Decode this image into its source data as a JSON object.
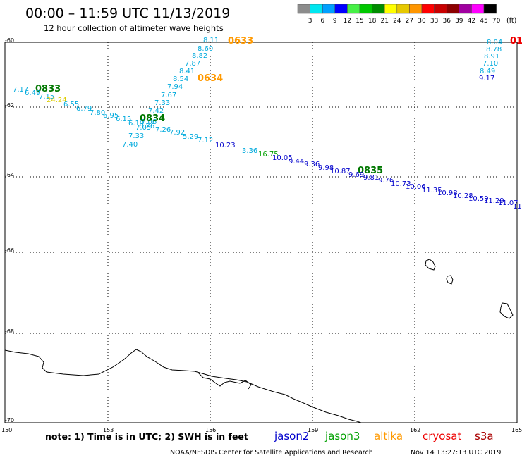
{
  "header": {
    "title": "00:00 – 11:59 UTC 11/13/2019",
    "subtitle": "12 hour collection of altimeter wave heights"
  },
  "legend": {
    "unit": "(ft)",
    "bins": [
      {
        "label": "3",
        "color": "#8c8c8c"
      },
      {
        "label": "6",
        "color": "#00e6f0"
      },
      {
        "label": "9",
        "color": "#00a0ff"
      },
      {
        "label": "12",
        "color": "#0000ff"
      },
      {
        "label": "15",
        "color": "#46f046"
      },
      {
        "label": "18",
        "color": "#00c800"
      },
      {
        "label": "21",
        "color": "#008c00"
      },
      {
        "label": "24",
        "color": "#ffff00"
      },
      {
        "label": "27",
        "color": "#e6c800"
      },
      {
        "label": "30",
        "color": "#ff9600"
      },
      {
        "label": "33",
        "color": "#ff0000"
      },
      {
        "label": "36",
        "color": "#c80000"
      },
      {
        "label": "39",
        "color": "#8c0000"
      },
      {
        "label": "42",
        "color": "#a000a0"
      },
      {
        "label": "45",
        "color": "#ff00ff"
      },
      {
        "label": "70",
        "color": "#000000"
      }
    ]
  },
  "axes": {
    "lat_labels": [
      "-60",
      "-62",
      "-64",
      "-66",
      "-68",
      "-70"
    ],
    "lon_labels": [
      "150",
      "153",
      "156",
      "159",
      "162",
      "165"
    ]
  },
  "colors": {
    "cyan": "#00aadd",
    "blue": "#0000cc",
    "green": "#00a000",
    "dark_green": "#007700",
    "yellow": "#ddcc00",
    "orange": "#ff9900",
    "red": "#ee0000"
  },
  "tracks": {
    "track_0633": {
      "time_label": "0633",
      "time_color": "#ff9900",
      "values": [
        "8.11",
        "8.60",
        "8.82",
        "7.87",
        "8.41",
        "8.54",
        "7.94",
        "7.67",
        "7.33",
        "7.42",
        "7.06",
        "7.05",
        "7.33",
        "7.40"
      ]
    },
    "track_0634": {
      "time_label": "0634",
      "time_color": "#ff9900"
    },
    "track_0833": {
      "time_label": "0833",
      "time_color": "#007700",
      "values": [
        "7.17",
        "6.49",
        "7.15",
        "24.24",
        "6.55",
        "6.79",
        "7.80",
        "6.95",
        "6.15",
        "6.19",
        "6.26"
      ]
    },
    "track_0834": {
      "time_label": "0834",
      "time_color": "#007700",
      "values": [
        "7.26",
        "7.92",
        "5.29",
        "7.12",
        "10.23",
        "3.36",
        "16.75",
        "10.05",
        "9.44",
        "9.36",
        "9.98",
        "10.87"
      ]
    },
    "track_0835": {
      "time_label": "0835",
      "time_color": "#007700",
      "values": [
        "9.69",
        "9.81",
        "9.76",
        "10.73",
        "10.06",
        "11.35",
        "10.98",
        "10.28",
        "10.59",
        "11.29",
        "11.07",
        "11"
      ]
    },
    "track_east": {
      "time_label": "01",
      "time_color": "#ee0000",
      "values": [
        "8.04",
        "8.78",
        "8.91",
        "7.10",
        "8.49",
        "9.17"
      ]
    }
  },
  "footer": {
    "note": "note: 1) Time is in UTC; 2) SWH is in feet",
    "satellites": [
      {
        "name": "jason2",
        "color": "#0000cc"
      },
      {
        "name": "jason3",
        "color": "#00a000"
      },
      {
        "name": "altika",
        "color": "#ff9900"
      },
      {
        "name": "cryosat",
        "color": "#ee0000"
      },
      {
        "name": "s3a",
        "color": "#aa0000"
      }
    ],
    "credit": "NOAA/NESDIS Center for Satellite Applications and Research",
    "timestamp": "Nov 14 13:27:13 UTC 2019"
  }
}
